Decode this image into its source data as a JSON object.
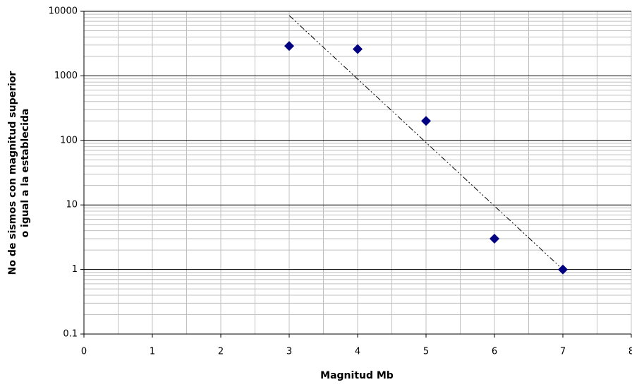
{
  "chart_data": {
    "type": "scatter",
    "xlabel": "Magnitud Mb",
    "ylabel": [
      "No de sismos con magnitud superior",
      "o igual a la establecida"
    ],
    "x": [
      3,
      4,
      5,
      6,
      7
    ],
    "series": [
      {
        "color": "#000080",
        "values": [
          2900,
          2600,
          200,
          3,
          1
        ]
      }
    ],
    "trendline": {
      "x": [
        3,
        7
      ],
      "values": [
        8600,
        1
      ],
      "color": "#000000"
    },
    "xlim": [
      0,
      8
    ],
    "xticks": [
      0,
      1,
      2,
      3,
      4,
      5,
      6,
      7,
      8
    ],
    "ylim": [
      0.1,
      10000
    ],
    "yticks": [
      0.1,
      1,
      10,
      100,
      1000,
      10000
    ],
    "log_y": true,
    "grid": true,
    "minor_grid": true
  }
}
